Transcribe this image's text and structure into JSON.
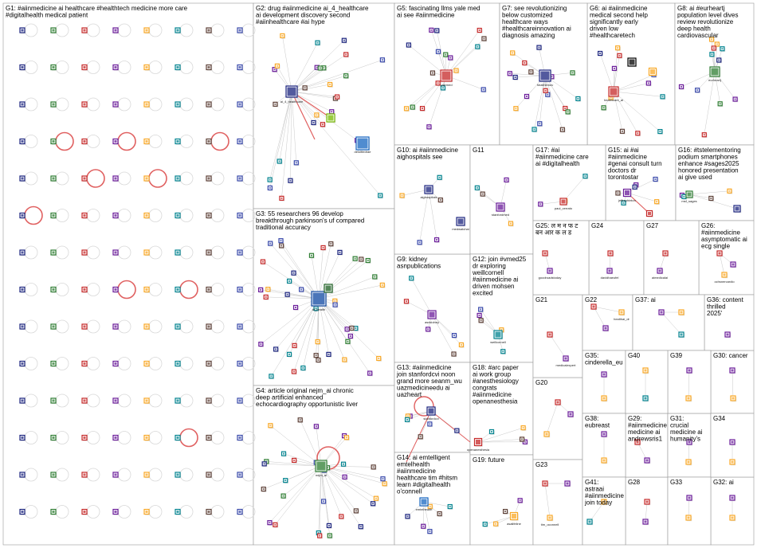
{
  "groups": [
    {
      "id": "G1",
      "label": "G1: #aiinmedicine ai healthcare #healthtech medicine more care #digitalhealth medical patient"
    },
    {
      "id": "G2",
      "label": "G2: drug #aiinmedicine ai_4_healthcare ai development discovery second #aiinhealthcare #ai hype"
    },
    {
      "id": "G3",
      "label": "G3: 55 researchers 96 develop breakthrough parkinson's uf compared traditional accuracy"
    },
    {
      "id": "G4",
      "label": "G4: article original nejm_ai chronic deep artificial enhanced echocardiography opportunistic liver"
    },
    {
      "id": "G5",
      "label": "G5: fascinating llms yale med ai see #aiinmedicine"
    },
    {
      "id": "G6",
      "label": "G6: ai #aiinmedicine medical second help significantly early driven low #healthcaretech"
    },
    {
      "id": "G7",
      "label": "G7: see revolutionizing below customized healthcare ways #healthcareinnovation ai diagnosis amazing"
    },
    {
      "id": "G8",
      "label": "G8: ai #eurheartj population level dives review revolutionize deep health cardiovascular"
    },
    {
      "id": "G9",
      "label": "G9: kidney asnpublications"
    },
    {
      "id": "G10",
      "label": "G10: ai #aiinmedicine aighospitals see"
    },
    {
      "id": "G11",
      "label": "G11"
    },
    {
      "id": "G12",
      "label": "G12: join #vmed25 dr exploring weillcornell #aiinmedicine ai driven mohsen excited"
    },
    {
      "id": "G13",
      "label": "G13: #aiinmedicine join stanfordcvi noon grand more seanm_wu uazmedicineedu ai uazheart"
    },
    {
      "id": "G14",
      "label": "G14: ai emtelligent emtelhealth #aiinmedicine healthcare tim #hitsm learn #digitalhealth o'connell"
    },
    {
      "id": "G15",
      "label": "G15: ai #ai #aiinmedicine #genai consult turn doctors dr torontostar increasingly"
    },
    {
      "id": "G16",
      "label": "G16: #tstelementoring podium smartphones enhance #sages2025 honored presentation ai give used"
    },
    {
      "id": "G17",
      "label": "G17: #ai #aiinmedicine care ai #digitalhealth"
    },
    {
      "id": "G18",
      "label": "G18: #arc paper ai work group #anesthesiology congrats #aiinmedicine openanesthesia asalifeline"
    },
    {
      "id": "G19",
      "label": "G19: future"
    },
    {
      "id": "G20",
      "label": "G20"
    },
    {
      "id": "G21",
      "label": "G21"
    },
    {
      "id": "G22",
      "label": "G22"
    },
    {
      "id": "G23",
      "label": "G23"
    },
    {
      "id": "G24",
      "label": "G24"
    },
    {
      "id": "G25",
      "label": "G25: ल म न फ ट बन आर क ल ड"
    },
    {
      "id": "G26",
      "label": "G26: #aiinmedicine asymptomatic ai ecg single detected lead #heartfailure #cardiotwitter ochsnercardio"
    },
    {
      "id": "G27",
      "label": "G27"
    },
    {
      "id": "G28",
      "label": "G28"
    },
    {
      "id": "G29",
      "label": "G29: #aiinmedicine medicine ai andrewsris1 watch"
    },
    {
      "id": "G30",
      "label": "G30: cancer"
    },
    {
      "id": "G31",
      "label": "G31: crucial medicine ai humanity's revolutionizing evolution diagnostics advancements tech"
    },
    {
      "id": "G32",
      "label": "G32: ai"
    },
    {
      "id": "G33",
      "label": "G33"
    },
    {
      "id": "G34",
      "label": "G34"
    },
    {
      "id": "G35",
      "label": "G35: cinderella_eu"
    },
    {
      "id": "G36",
      "label": "G36: content thrilled 2025' creators mewar receive aravalli medicine 'content award"
    },
    {
      "id": "G37",
      "label": "G37: ai"
    },
    {
      "id": "G38",
      "label": "G38: eubreast"
    },
    {
      "id": "G39",
      "label": "G39"
    },
    {
      "id": "G40",
      "label": "G40"
    },
    {
      "id": "G41",
      "label": "G41: astraai #aiinmedicine join today #astraai #digitalhealth"
    }
  ],
  "node_labels": {
    "G2": [
      "ai_4_healthcare",
      "mmp_ai",
      "nvidia",
      "deloittedrae",
      "nnn_me"
    ],
    "G3": [
      "uf_health"
    ],
    "G4": [
      "nejm_ai"
    ],
    "G5": [
      "yalemed"
    ],
    "G6": [
      "healthcare_ai",
      "tacoronfe"
    ],
    "G7": [
      "healthinnov"
    ],
    "G8": [
      "eurheartj"
    ],
    "G9": [
      "asnkidney"
    ],
    "G10": [
      "aighospitals",
      "medwatchai"
    ],
    "G11": [
      "stanfordmed",
      "uazmedicine"
    ],
    "G12": [
      "weillcornell"
    ],
    "G13": [
      "stanfordcvi",
      "seanm_wu"
    ],
    "G14": [
      "emtelhealth",
      "emtelligent"
    ],
    "G15": [
      "torontostar",
      "jeffreyhinton"
    ],
    "G16": [
      "msf_sages"
    ],
    "G17": [
      "paul_cerrato"
    ],
    "G18": [
      "openanesthesia"
    ],
    "G19": [
      "asalifeline"
    ],
    "G21": [
      "medicalexpert"
    ],
    "G22": [
      "healthai_dr"
    ],
    "G23": [
      "tim_oconnell"
    ],
    "G24": [
      "davidhaeufel"
    ],
    "G25": [
      "goodroadstoday"
    ],
    "G26": [
      "ochsnercardio"
    ],
    "G27": [
      "aimedicalai"
    ]
  },
  "colors": {
    "edge": "#c8c8c8",
    "self_loop": "#e06060",
    "group_border": "#9a9a9a",
    "node_blue": "#1a237e",
    "node_green": "#2e7d32",
    "node_red": "#c62828",
    "node_purple": "#6a1b9a",
    "node_gold": "#f9a825"
  }
}
